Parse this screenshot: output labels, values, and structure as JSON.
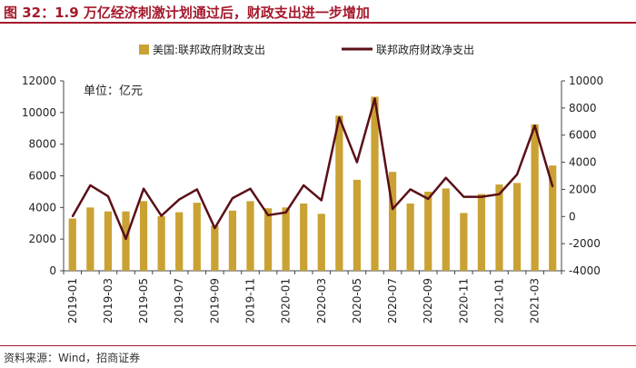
{
  "header": {
    "title": "图 32：1.9 万亿经济刺激计划通过后，财政支出进一步增加"
  },
  "footer": {
    "source": "资料来源：Wind，招商证券"
  },
  "colors": {
    "accent": "#a5192c",
    "bar": "#c9a233",
    "line": "#5a0f17"
  },
  "chart_data": {
    "type": "bar",
    "title": "1.9 万亿经济刺激计划通过后，财政支出进一步增加",
    "unit_label": "单位：亿元",
    "categories": [
      "2019-01",
      "2019-02",
      "2019-03",
      "2019-04",
      "2019-05",
      "2019-06",
      "2019-07",
      "2019-08",
      "2019-09",
      "2019-10",
      "2019-11",
      "2019-12",
      "2020-01",
      "2020-02",
      "2020-03",
      "2020-04",
      "2020-05",
      "2020-06",
      "2020-07",
      "2020-08",
      "2020-09",
      "2020-10",
      "2020-11",
      "2020-12",
      "2021-01",
      "2021-02",
      "2021-03",
      "2021-04"
    ],
    "x_tick_labels": [
      "2019-01",
      "2019-03",
      "2019-05",
      "2019-07",
      "2019-09",
      "2019-11",
      "2020-01",
      "2020-03",
      "2020-05",
      "2020-07",
      "2020-09",
      "2020-11",
      "2021-01",
      "2021-03"
    ],
    "series": [
      {
        "name": "美国:联邦政府财政支出",
        "type": "bar",
        "axis": "left",
        "values": [
          3300,
          4000,
          3750,
          3750,
          4400,
          3450,
          3700,
          4300,
          2850,
          3800,
          4400,
          3950,
          4000,
          4250,
          3600,
          9800,
          5750,
          11000,
          6250,
          4250,
          5000,
          5200,
          3650,
          4850,
          5450,
          5550,
          9250,
          6650
        ]
      },
      {
        "name": "联邦政府财政净支出",
        "type": "line",
        "axis": "right",
        "values": [
          0,
          2300,
          1500,
          -1650,
          2050,
          50,
          1250,
          2000,
          -850,
          1350,
          2050,
          100,
          300,
          2300,
          1200,
          7300,
          4000,
          8700,
          550,
          2000,
          1300,
          2850,
          1450,
          1450,
          1650,
          3100,
          6700,
          2200
        ]
      }
    ],
    "y_left": {
      "min": 0,
      "max": 12000,
      "ticks": [
        0,
        2000,
        4000,
        6000,
        8000,
        10000,
        12000
      ]
    },
    "y_right": {
      "min": -4000,
      "max": 10000,
      "ticks": [
        -4000,
        -2000,
        0,
        2000,
        4000,
        6000,
        8000,
        10000
      ]
    },
    "legend_position": "top",
    "grid": false
  }
}
